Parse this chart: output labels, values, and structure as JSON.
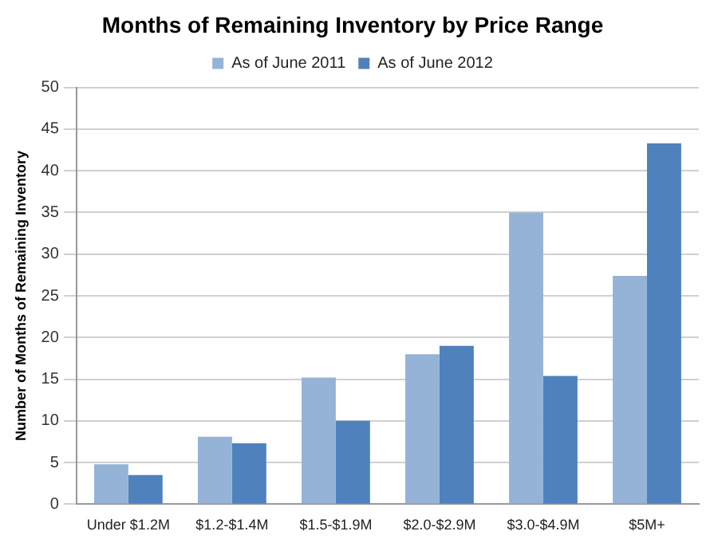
{
  "chart_data": {
    "type": "bar",
    "title": "Months of Remaining Inventory by Price Range",
    "ylabel": "Number of Months of Remaining Inventory",
    "categories": [
      "Under $1.2M",
      "$1.2-$1.4M",
      "$1.5-$1.9M",
      "$2.0-$2.9M",
      "$3.0-$4.9M",
      "$5M+"
    ],
    "series": [
      {
        "name": "As of June 2011",
        "color": "#95b3d7",
        "values": [
          4.8,
          8.1,
          15.2,
          18,
          35,
          27.4
        ]
      },
      {
        "name": "As of June 2012",
        "color": "#4f81bd",
        "values": [
          3.5,
          7.3,
          10,
          19,
          15.4,
          43.3
        ]
      }
    ],
    "ylim": [
      0,
      50
    ],
    "yticks": [
      0,
      5,
      10,
      15,
      20,
      25,
      30,
      35,
      40,
      45,
      50
    ],
    "grid": "y",
    "legend": "top"
  }
}
